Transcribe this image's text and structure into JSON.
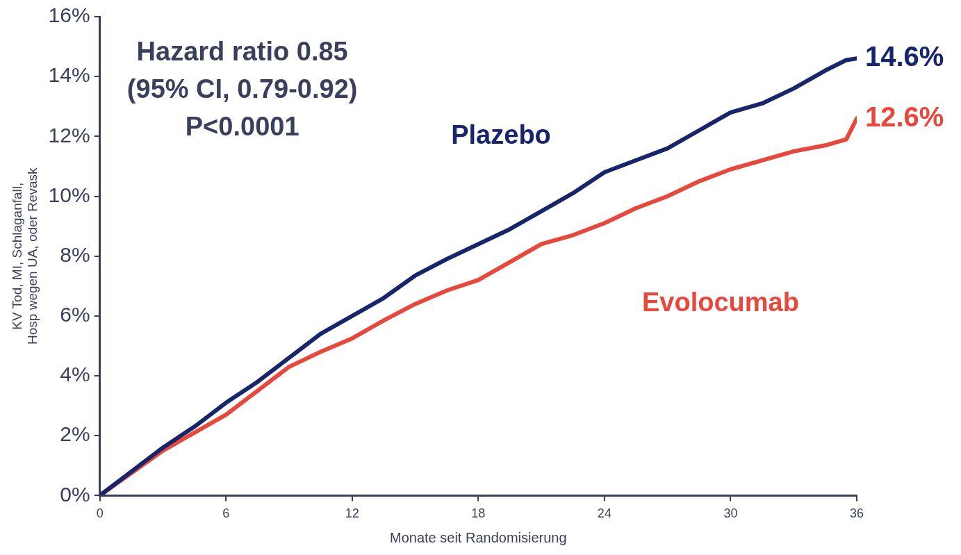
{
  "chart_data": {
    "type": "line",
    "xlabel": "Monate seit Randomisierung",
    "ylabel": "KV Tod, MI, Schlaganfall,\nHosp wegen UA, oder Revask",
    "xlim": [
      0,
      36
    ],
    "xticks": [
      0,
      6,
      12,
      18,
      24,
      30,
      36
    ],
    "ylim": [
      0,
      16
    ],
    "yticks": [
      {
        "value": 0,
        "label": "0%"
      },
      {
        "value": 2,
        "label": "2%"
      },
      {
        "value": 4,
        "label": "4%"
      },
      {
        "value": 6,
        "label": "6%"
      },
      {
        "value": 8,
        "label": "8%"
      },
      {
        "value": 10,
        "label": "10%"
      },
      {
        "value": 12,
        "label": "12%"
      },
      {
        "value": 14,
        "label": "14%"
      },
      {
        "value": 16,
        "label": "16%"
      }
    ],
    "grid": false,
    "legend": false,
    "marker": "none",
    "line_style": "solid",
    "x": [
      0,
      1.5,
      3,
      4.5,
      6,
      7.5,
      9,
      10.5,
      12,
      13.5,
      15,
      16.5,
      18,
      19.5,
      21,
      22.5,
      24,
      25.5,
      27,
      28.5,
      30,
      31.5,
      33,
      34.5,
      35.5,
      36
    ],
    "series": [
      {
        "name": "Plazebo",
        "color": "#17256b",
        "values": [
          0,
          0.8,
          1.6,
          2.3,
          3.1,
          3.8,
          4.6,
          5.4,
          6.0,
          6.6,
          7.35,
          7.9,
          8.4,
          8.9,
          9.5,
          10.1,
          10.8,
          11.2,
          11.6,
          12.2,
          12.8,
          13.1,
          13.6,
          14.2,
          14.55,
          14.6
        ],
        "value_labels": [
          null,
          null,
          null,
          null,
          null,
          null,
          null,
          null,
          null,
          null,
          null,
          null,
          null,
          null,
          null,
          null,
          null,
          null,
          null,
          null,
          null,
          null,
          null,
          null,
          null,
          "14.6%"
        ]
      },
      {
        "name": "Evolocumab",
        "color": "#e8473c",
        "values": [
          0,
          0.75,
          1.5,
          2.1,
          2.7,
          3.5,
          4.3,
          4.8,
          5.25,
          5.85,
          6.4,
          6.85,
          7.2,
          7.8,
          8.4,
          8.7,
          9.1,
          9.6,
          10.0,
          10.5,
          10.9,
          11.2,
          11.5,
          11.7,
          11.9,
          12.6
        ],
        "value_labels": [
          null,
          null,
          null,
          null,
          null,
          null,
          null,
          null,
          null,
          null,
          null,
          null,
          null,
          null,
          null,
          null,
          null,
          null,
          null,
          null,
          null,
          null,
          null,
          null,
          null,
          "12.6%"
        ]
      }
    ],
    "annotations": [
      "Hazard ratio 0.85\n(95% CI, 0.79-0.92)\nP<0.0001"
    ]
  }
}
